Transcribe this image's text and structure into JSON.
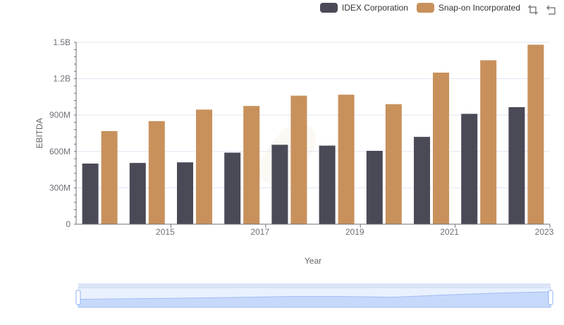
{
  "chart_data": {
    "type": "bar",
    "xlabel": "Year",
    "ylabel": "EBITDA",
    "categories": [
      "2014",
      "2015",
      "2016",
      "2017",
      "2018",
      "2019",
      "2020",
      "2021",
      "2022",
      "2023"
    ],
    "x_tick_labels": [
      "2015",
      "2017",
      "2019",
      "2021",
      "2023"
    ],
    "y_tick_labels": [
      "0",
      "300M",
      "600M",
      "900M",
      "1.2B",
      "1.5B"
    ],
    "ylim": [
      0,
      1500000000
    ],
    "y_ticks": [
      0,
      300000000,
      600000000,
      900000000,
      1200000000,
      1500000000
    ],
    "grid": true,
    "legend_position": "top-right",
    "series": [
      {
        "name": "IDEX Corporation",
        "color": "#4a4a57",
        "values": [
          500000000,
          505000000,
          510000000,
          590000000,
          655000000,
          648000000,
          605000000,
          720000000,
          910000000,
          965000000
        ]
      },
      {
        "name": "Snap-on Incorporated",
        "color": "#c8915c",
        "values": [
          768000000,
          850000000,
          945000000,
          975000000,
          1060000000,
          1068000000,
          990000000,
          1250000000,
          1352000000,
          1480000000
        ]
      }
    ]
  },
  "toolbox": {
    "icons": [
      "zoom-icon",
      "restore-icon"
    ]
  },
  "data_zoom": {
    "start_percent": 0,
    "end_percent": 100
  }
}
